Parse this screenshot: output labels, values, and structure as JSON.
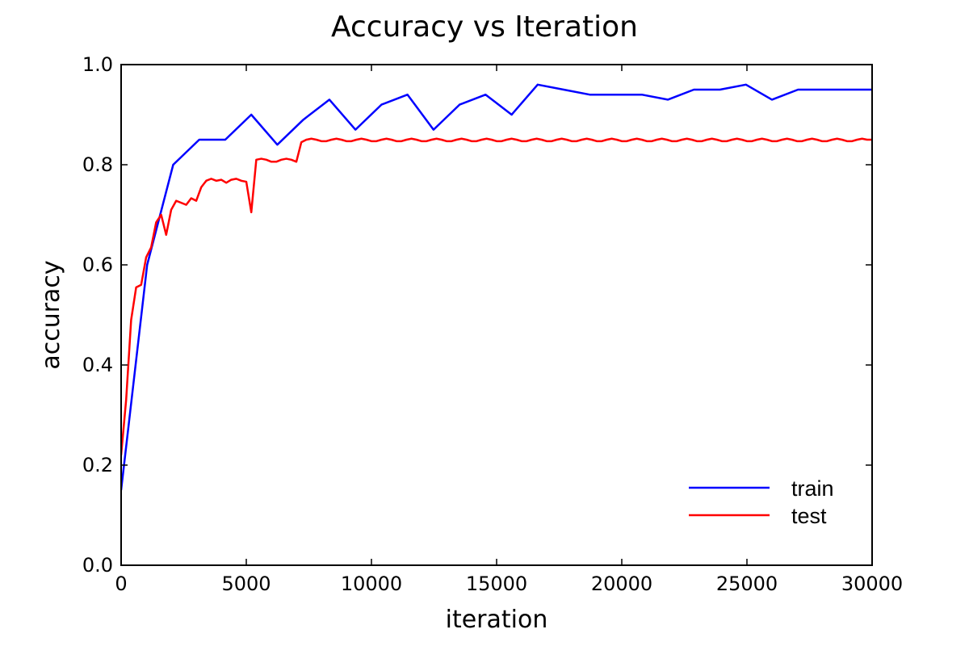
{
  "chart_data": {
    "type": "line",
    "title": "Accuracy vs Iteration",
    "xlabel": "iteration",
    "ylabel": "accuracy",
    "xlim": [
      0,
      30000
    ],
    "ylim": [
      0.0,
      1.0
    ],
    "x_ticks": [
      0,
      5000,
      10000,
      15000,
      20000,
      25000,
      30000
    ],
    "y_ticks": [
      0.0,
      0.2,
      0.4,
      0.6,
      0.8,
      1.0
    ],
    "x_tick_labels": [
      "0",
      "5000",
      "10000",
      "15000",
      "20000",
      "25000",
      "30000"
    ],
    "y_tick_labels": [
      "0.0",
      "0.2",
      "0.4",
      "0.6",
      "0.8",
      "1.0"
    ],
    "grid": false,
    "legend_position": "lower-right",
    "series": [
      {
        "name": "train",
        "color": "#0000ff",
        "x": [
          0,
          1040,
          2080,
          3120,
          4160,
          5200,
          6240,
          7280,
          8320,
          9360,
          10400,
          11440,
          12480,
          13520,
          14560,
          15600,
          16640,
          17680,
          18720,
          19760,
          20800,
          21840,
          22880,
          23920,
          24960,
          26000,
          27040,
          28080,
          29120,
          30000
        ],
        "y": [
          0.15,
          0.6,
          0.8,
          0.85,
          0.85,
          0.9,
          0.84,
          0.89,
          0.93,
          0.87,
          0.92,
          0.94,
          0.87,
          0.92,
          0.94,
          0.9,
          0.96,
          0.95,
          0.94,
          0.94,
          0.94,
          0.93,
          0.95,
          0.95,
          0.96,
          0.93,
          0.95,
          0.95,
          0.95,
          0.95
        ]
      },
      {
        "name": "test",
        "color": "#ff0000",
        "x": [
          0,
          200,
          400,
          600,
          800,
          1000,
          1200,
          1400,
          1600,
          1800,
          2000,
          2200,
          2400,
          2600,
          2800,
          3000,
          3200,
          3400,
          3600,
          3800,
          4000,
          4200,
          4400,
          4600,
          4800,
          5000,
          5200,
          5400,
          5600,
          5800,
          6000,
          6200,
          6400,
          6600,
          6800,
          7000,
          7200,
          7400,
          7600,
          7800,
          8000,
          8200,
          8400,
          8600,
          8800,
          9000,
          9200,
          9400,
          9600,
          9800,
          10000,
          10200,
          10400,
          10600,
          10800,
          11000,
          11200,
          11400,
          11600,
          11800,
          12000,
          12200,
          12400,
          12600,
          12800,
          13000,
          13200,
          13400,
          13600,
          13800,
          14000,
          14200,
          14400,
          14600,
          14800,
          15000,
          15200,
          15400,
          15600,
          15800,
          16000,
          16200,
          16400,
          16600,
          16800,
          17000,
          17200,
          17400,
          17600,
          17800,
          18000,
          18200,
          18400,
          18600,
          18800,
          19000,
          19200,
          19400,
          19600,
          19800,
          20000,
          20200,
          20400,
          20600,
          20800,
          21000,
          21200,
          21400,
          21600,
          21800,
          22000,
          22200,
          22400,
          22600,
          22800,
          23000,
          23200,
          23400,
          23600,
          23800,
          24000,
          24200,
          24400,
          24600,
          24800,
          25000,
          25200,
          25400,
          25600,
          25800,
          26000,
          26200,
          26400,
          26600,
          26800,
          27000,
          27200,
          27400,
          27600,
          27800,
          28000,
          28200,
          28400,
          28600,
          28800,
          29000,
          29200,
          29400,
          29600,
          29800,
          30000
        ],
        "y": [
          0.22,
          0.33,
          0.49,
          0.555,
          0.56,
          0.615,
          0.635,
          0.685,
          0.7,
          0.66,
          0.71,
          0.728,
          0.724,
          0.72,
          0.733,
          0.728,
          0.755,
          0.768,
          0.772,
          0.768,
          0.77,
          0.764,
          0.77,
          0.772,
          0.768,
          0.766,
          0.705,
          0.81,
          0.812,
          0.81,
          0.806,
          0.806,
          0.81,
          0.812,
          0.81,
          0.806,
          0.845,
          0.85,
          0.852,
          0.85,
          0.847,
          0.847,
          0.85,
          0.852,
          0.85,
          0.847,
          0.847,
          0.85,
          0.852,
          0.85,
          0.847,
          0.847,
          0.85,
          0.852,
          0.85,
          0.847,
          0.847,
          0.85,
          0.852,
          0.85,
          0.847,
          0.847,
          0.85,
          0.852,
          0.85,
          0.847,
          0.847,
          0.85,
          0.852,
          0.85,
          0.847,
          0.847,
          0.85,
          0.852,
          0.85,
          0.847,
          0.847,
          0.85,
          0.852,
          0.85,
          0.847,
          0.847,
          0.85,
          0.852,
          0.85,
          0.847,
          0.847,
          0.85,
          0.852,
          0.85,
          0.847,
          0.847,
          0.85,
          0.852,
          0.85,
          0.847,
          0.847,
          0.85,
          0.852,
          0.85,
          0.847,
          0.847,
          0.85,
          0.852,
          0.85,
          0.847,
          0.847,
          0.85,
          0.852,
          0.85,
          0.847,
          0.847,
          0.85,
          0.852,
          0.85,
          0.847,
          0.847,
          0.85,
          0.852,
          0.85,
          0.847,
          0.847,
          0.85,
          0.852,
          0.85,
          0.847,
          0.847,
          0.85,
          0.852,
          0.85,
          0.847,
          0.847,
          0.85,
          0.852,
          0.85,
          0.847,
          0.847,
          0.85,
          0.852,
          0.85,
          0.847,
          0.847,
          0.85,
          0.852,
          0.85,
          0.847,
          0.847,
          0.85,
          0.852,
          0.85,
          0.85
        ]
      }
    ]
  }
}
